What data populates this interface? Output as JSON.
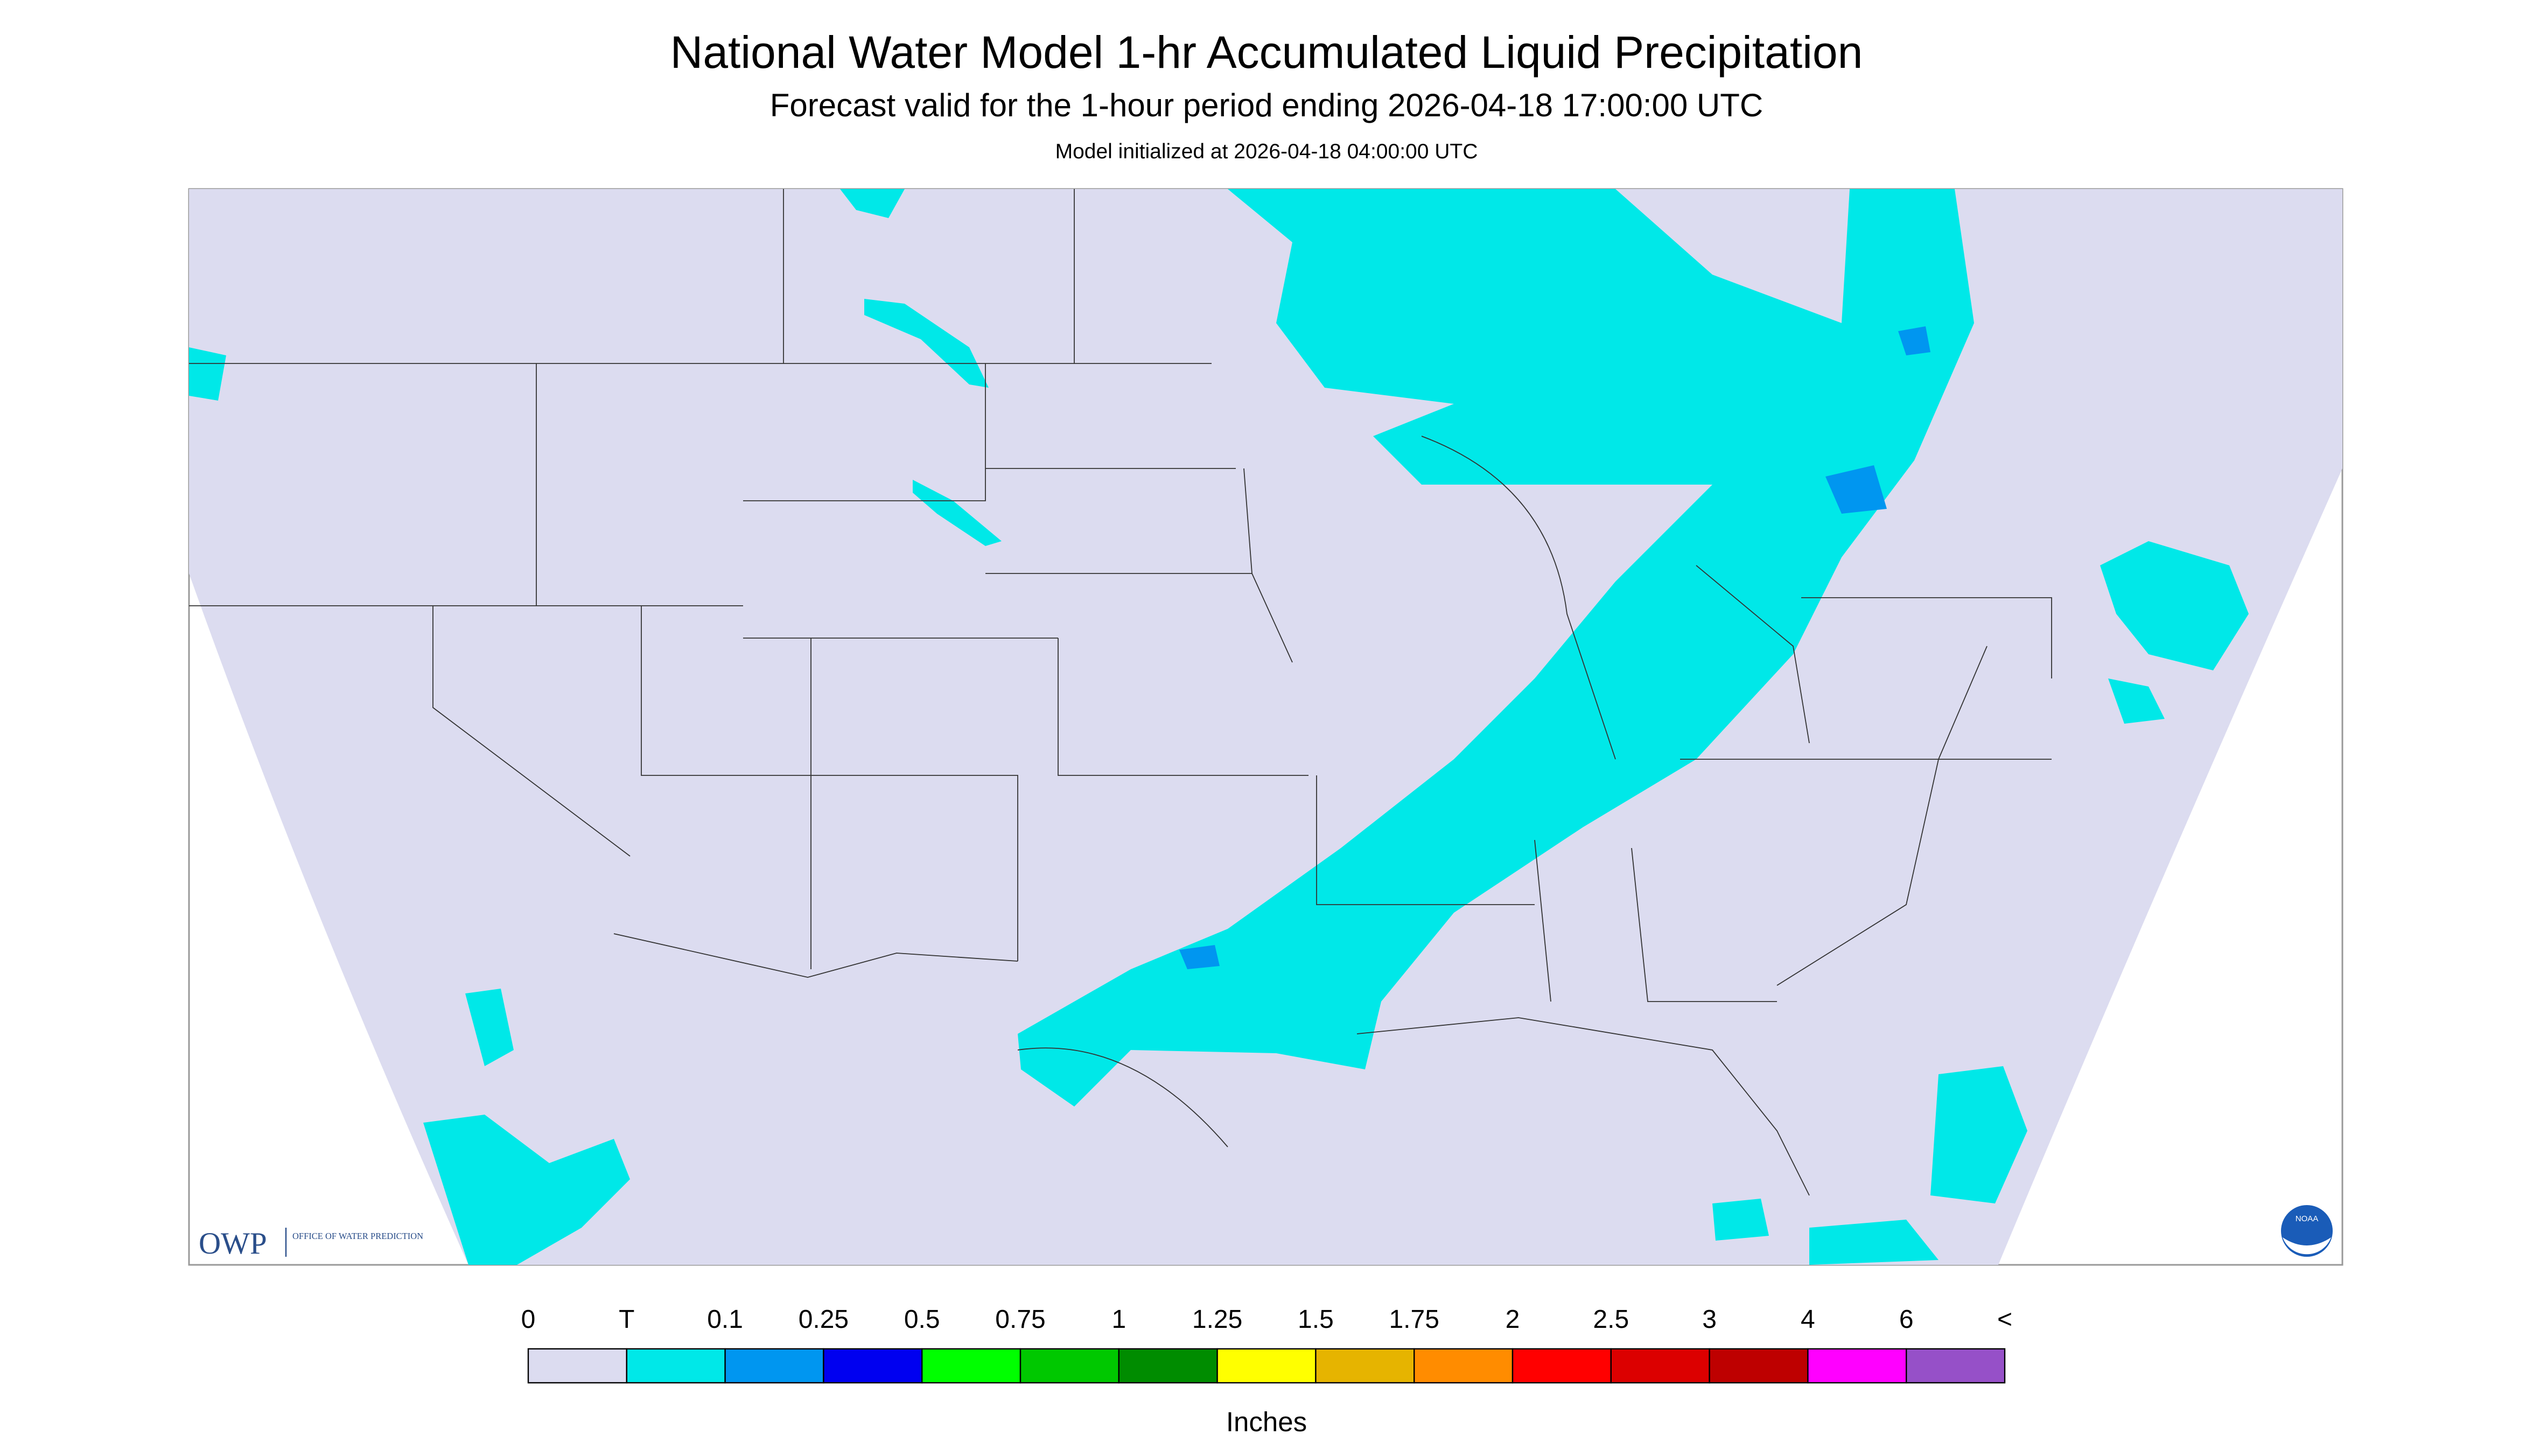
{
  "header": {
    "title": "National Water Model 1-hr Accumulated Liquid Precipitation",
    "subtitle": "Forecast valid for the 1-hour period ending 2026-04-18 17:00:00 UTC",
    "initialized": "Model initialized at 2026-04-18 04:00:00 UTC"
  },
  "legend": {
    "labels": [
      "0",
      "T",
      "0.1",
      "0.25",
      "0.5",
      "0.75",
      "1",
      "1.25",
      "1.5",
      "1.75",
      "2",
      "2.5",
      "3",
      "4",
      "6",
      "<"
    ],
    "colors": [
      "#dcdcf0",
      "#00e8e8",
      "#0096f0",
      "#0000f0",
      "#00ff00",
      "#00c800",
      "#008c00",
      "#ffff00",
      "#e6b400",
      "#ff8c00",
      "#ff0000",
      "#dc0000",
      "#be0000",
      "#ff00ff",
      "#9650c8"
    ],
    "unit": "Inches"
  },
  "logos": {
    "owp": "OWP",
    "owp_name": "OFFICE OF WATER PREDICTION",
    "noaa": "NOAA"
  }
}
